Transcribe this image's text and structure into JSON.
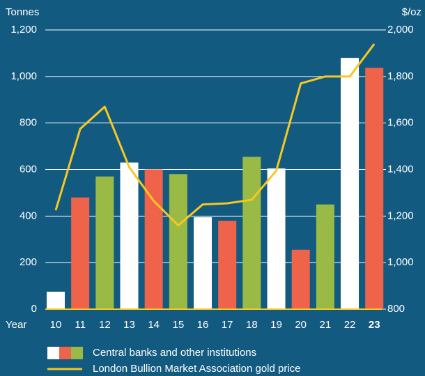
{
  "chart_data": {
    "type": "bar",
    "y_label": "Tonnes",
    "y2_label": "$/oz",
    "x_label": "Year",
    "categories": [
      "10",
      "11",
      "12",
      "13",
      "14",
      "15",
      "16",
      "17",
      "18",
      "19",
      "20",
      "21",
      "22",
      "23"
    ],
    "series": [
      {
        "name": "Central banks and other institutions",
        "type": "bar",
        "colors": [
          "#ffffff",
          "#ef634a",
          "#99ba45"
        ],
        "values": [
          75,
          480,
          570,
          630,
          600,
          580,
          395,
          380,
          655,
          605,
          255,
          450,
          1080,
          1037
        ]
      },
      {
        "name": "London Bullion Market Association gold price",
        "type": "line",
        "axis": "y2",
        "color": "#f7c81f",
        "values": [
          1225,
          1575,
          1670,
          1410,
          1265,
          1160,
          1250,
          1255,
          1270,
          1395,
          1770,
          1800,
          1800,
          1940
        ]
      }
    ],
    "ylim": [
      0,
      1200
    ],
    "yticks": [
      0,
      200,
      400,
      600,
      800,
      {
        "value": 1000,
        "label": "1,000"
      },
      {
        "value": 1200,
        "label": "1,200"
      }
    ],
    "y2lim": [
      800,
      2000
    ],
    "y2ticks": [
      800,
      {
        "value": 1000,
        "label": "1,000"
      },
      {
        "value": 1200,
        "label": "1,200"
      },
      {
        "value": 1400,
        "label": "1,400"
      },
      {
        "value": 1600,
        "label": "1,600"
      },
      {
        "value": 1800,
        "label": "1,800"
      },
      {
        "value": 2000,
        "label": "2,000"
      }
    ],
    "grid": true
  }
}
